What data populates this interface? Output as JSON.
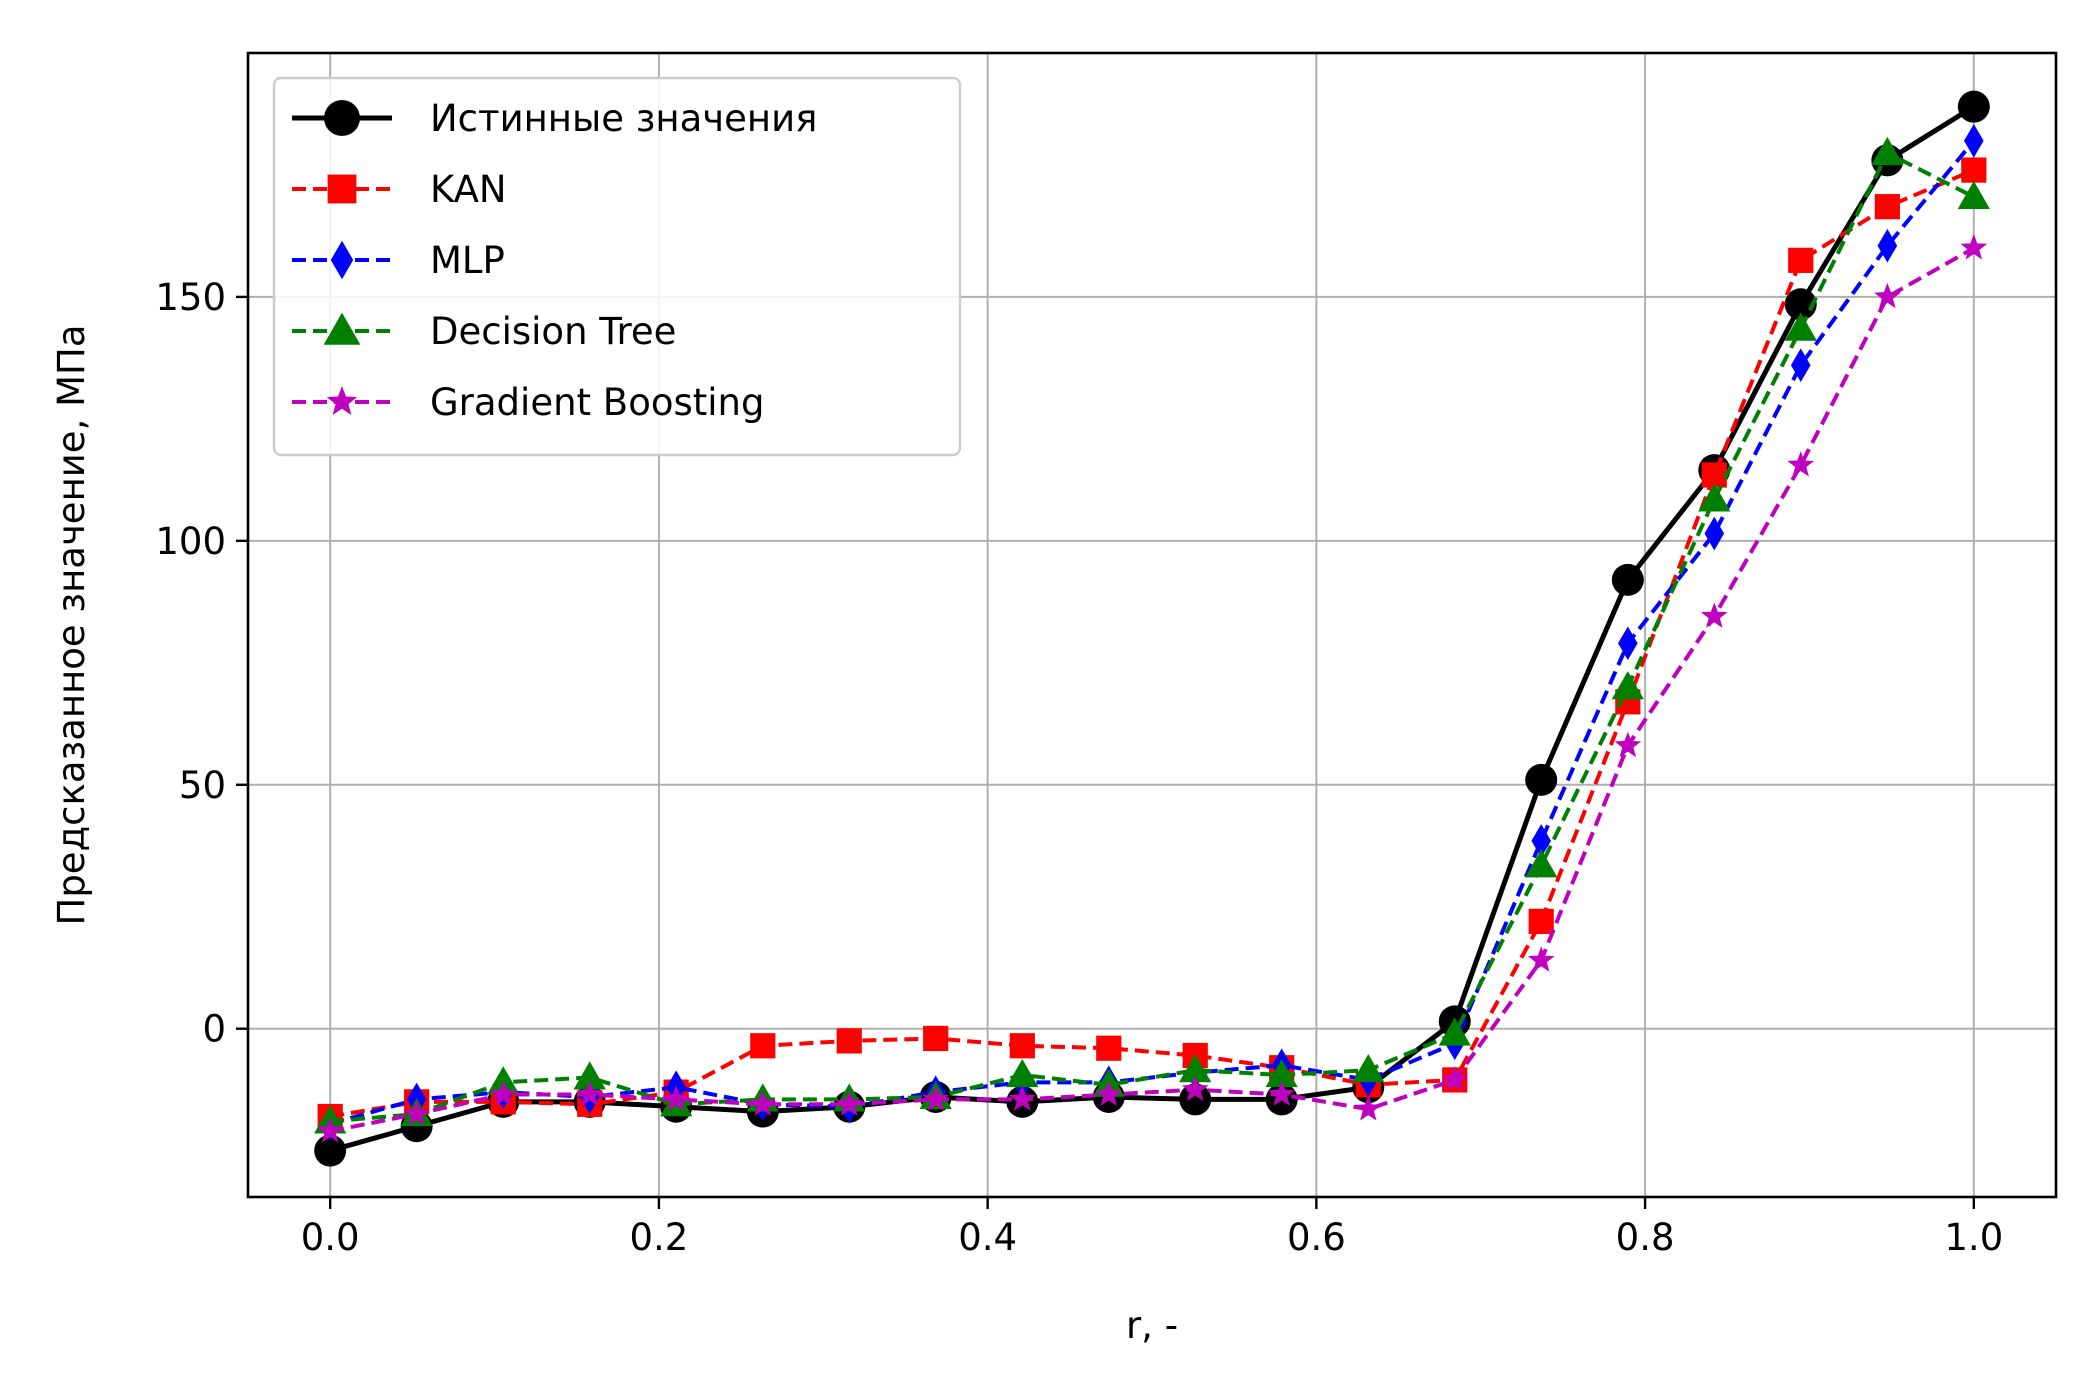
{
  "chart_data": {
    "type": "line",
    "xlabel": "r, -",
    "ylabel": "Предсказанное значение, МПа",
    "xlim": [
      -0.05,
      1.05
    ],
    "ylim": [
      -34.5,
      200
    ],
    "xticks": [
      0.0,
      0.2,
      0.4,
      0.6,
      0.8,
      1.0
    ],
    "xtick_labels": [
      "0.0",
      "0.2",
      "0.4",
      "0.6",
      "0.8",
      "1.0"
    ],
    "yticks": [
      0,
      50,
      100,
      150
    ],
    "ytick_labels": [
      "0",
      "50",
      "100",
      "150"
    ],
    "grid": true,
    "legend_position": "upper-left",
    "x": [
      0.0,
      0.0526,
      0.1053,
      0.1579,
      0.2105,
      0.2632,
      0.3158,
      0.3684,
      0.4211,
      0.4737,
      0.5263,
      0.5789,
      0.6316,
      0.6842,
      0.7368,
      0.7895,
      0.8421,
      0.8947,
      0.9474,
      1.0
    ],
    "series": [
      {
        "name": "Истинные значения",
        "color": "#000000",
        "marker": "circle",
        "dash": "solid",
        "values": [
          -25,
          -20,
          -15,
          -15,
          -16,
          -17,
          -16,
          -14,
          -15,
          -14,
          -14.5,
          -14.5,
          -12,
          1.5,
          51,
          92,
          114.5,
          148.5,
          178,
          189
        ]
      },
      {
        "name": "KAN",
        "color": "#ff0000",
        "marker": "square",
        "dash": "dashed",
        "values": [
          -18,
          -15,
          -15,
          -15.5,
          -13,
          -3.5,
          -2.5,
          -2,
          -3.5,
          -4,
          -5.5,
          -8,
          -11.5,
          -10.5,
          22,
          67,
          113.5,
          157.5,
          168.5,
          176
        ]
      },
      {
        "name": "MLP",
        "color": "#0000ff",
        "marker": "diamond",
        "dash": "dashed",
        "values": [
          -19.5,
          -14.5,
          -13,
          -14,
          -12,
          -15.5,
          -16,
          -13,
          -11,
          -11,
          -9,
          -7.5,
          -10.5,
          -3,
          38.5,
          79,
          101.5,
          136,
          160.5,
          182
        ]
      },
      {
        "name": "Decision Tree",
        "color": "#008000",
        "marker": "triangle",
        "dash": "dashed",
        "values": [
          -19,
          -17.5,
          -11,
          -10,
          -15.5,
          -14.5,
          -14.5,
          -14,
          -9.5,
          -11.5,
          -8.5,
          -9.5,
          -8.5,
          -1,
          33.5,
          70,
          108.5,
          143.5,
          179.5,
          170.5
        ]
      },
      {
        "name": "Gradient Boosting",
        "color": "#bf00bf",
        "marker": "star",
        "dash": "dashed",
        "values": [
          -21,
          -17.5,
          -13.5,
          -13.5,
          -14.5,
          -15.5,
          -15.5,
          -14.5,
          -14.5,
          -13.5,
          -12.5,
          -13.5,
          -16.5,
          -10.5,
          14,
          58,
          84.5,
          115.5,
          150,
          160
        ]
      }
    ]
  }
}
